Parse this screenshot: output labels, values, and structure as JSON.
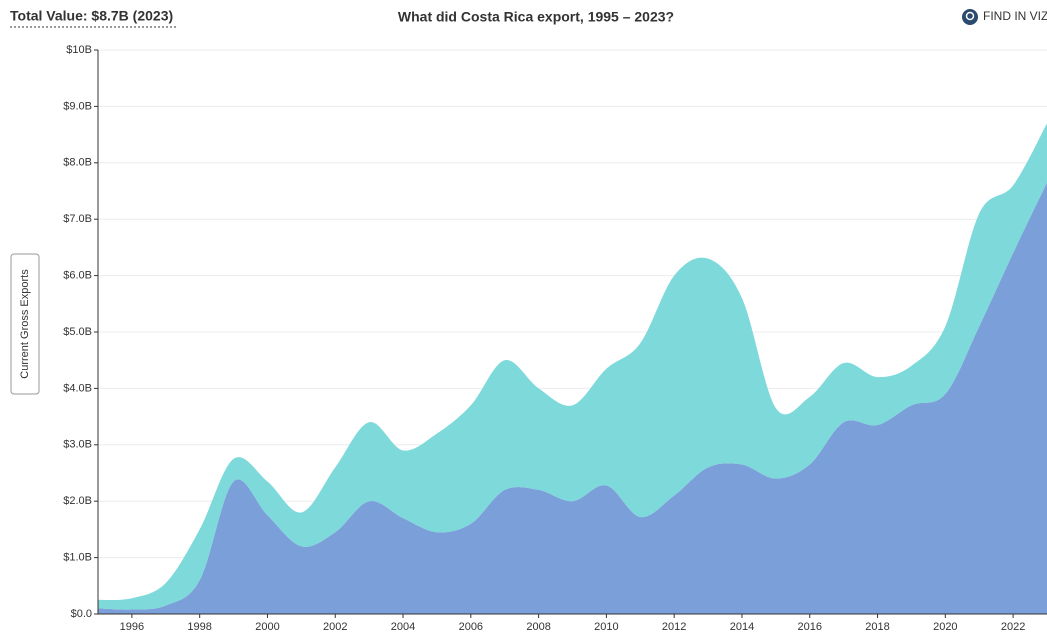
{
  "header": {
    "total": "Total Value: $8.7B (2023)",
    "find": "FIND IN VIZ",
    "measure": "Current Gross Exports"
  },
  "chart_data": {
    "type": "stacked-area",
    "title": "What did Costa Rica export, 1995 – 2023?",
    "x": [
      1995,
      1996,
      1997,
      1998,
      1999,
      2000,
      2001,
      2002,
      2003,
      2004,
      2005,
      2006,
      2007,
      2008,
      2009,
      2010,
      2011,
      2012,
      2013,
      2014,
      2015,
      2016,
      2017,
      2018,
      2019,
      2020,
      2021,
      2022,
      2023
    ],
    "series": [
      {
        "color": "#7b9fd9",
        "values": [
          0.1,
          0.08,
          0.15,
          0.6,
          2.35,
          1.75,
          1.2,
          1.45,
          2.0,
          1.7,
          1.45,
          1.6,
          2.2,
          2.2,
          2.0,
          2.28,
          1.72,
          2.1,
          2.6,
          2.65,
          2.4,
          2.65,
          3.4,
          3.35,
          3.7,
          3.9,
          5.1,
          6.4,
          7.65
        ]
      },
      {
        "color": "#7dd9da",
        "values": [
          0.15,
          0.2,
          0.4,
          0.9,
          0.4,
          0.6,
          0.6,
          1.15,
          1.4,
          1.2,
          1.75,
          2.1,
          2.3,
          1.8,
          1.7,
          2.07,
          3.08,
          3.9,
          3.7,
          2.95,
          1.25,
          1.2,
          1.05,
          0.85,
          0.7,
          1.2,
          2.0,
          1.2,
          1.05
        ]
      }
    ],
    "xlim": [
      1995,
      2023
    ],
    "xticks": [
      1996,
      1998,
      2000,
      2002,
      2004,
      2006,
      2008,
      2010,
      2012,
      2014,
      2016,
      2018,
      2020,
      2022
    ],
    "ylim": [
      0,
      10
    ],
    "yticks": [
      {
        "value": 0,
        "label": "$0.0"
      },
      {
        "value": 1,
        "label": "$1.0B"
      },
      {
        "value": 2,
        "label": "$2.0B"
      },
      {
        "value": 3,
        "label": "$3.0B"
      },
      {
        "value": 4,
        "label": "$4.0B"
      },
      {
        "value": 5,
        "label": "$5.0B"
      },
      {
        "value": 6,
        "label": "$6.0B"
      },
      {
        "value": 7,
        "label": "$7.0B"
      },
      {
        "value": 8,
        "label": "$8.0B"
      },
      {
        "value": 9,
        "label": "$9.0B"
      },
      {
        "value": 10,
        "label": "$10B"
      }
    ],
    "grid": true
  }
}
